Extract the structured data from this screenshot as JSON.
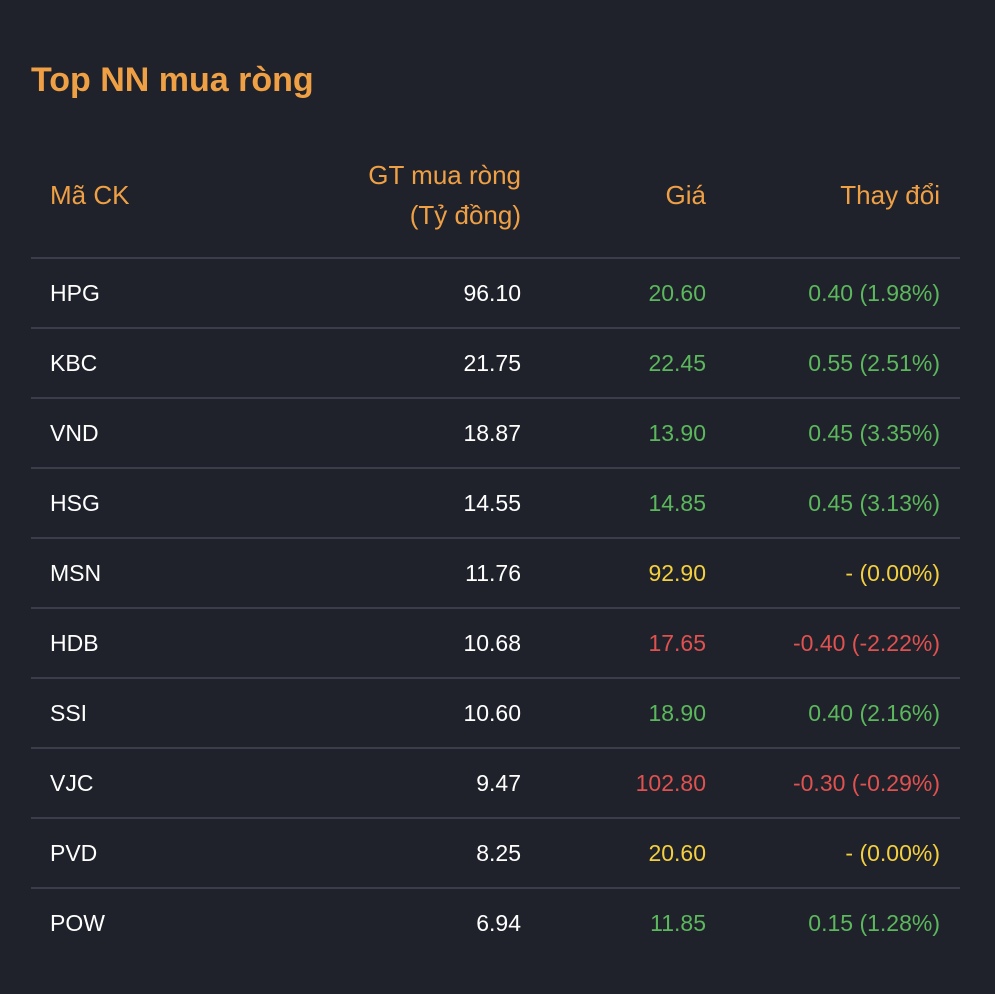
{
  "title": "Top NN mua ròng",
  "headers": {
    "symbol": "Mã CK",
    "net_value_line1": "GT mua ròng",
    "net_value_line2": "(Tỷ đồng)",
    "price": "Giá",
    "change": "Thay đổi"
  },
  "colors": {
    "accent": "#f0a044",
    "background": "#1f222b",
    "up": "#5cb85c",
    "flat": "#f4d03f",
    "down": "#e0514f"
  },
  "rows": [
    {
      "symbol": "HPG",
      "net_value": "96.10",
      "price": "20.60",
      "change": "0.40 (1.98%)",
      "trend": "up"
    },
    {
      "symbol": "KBC",
      "net_value": "21.75",
      "price": "22.45",
      "change": "0.55 (2.51%)",
      "trend": "up"
    },
    {
      "symbol": "VND",
      "net_value": "18.87",
      "price": "13.90",
      "change": "0.45 (3.35%)",
      "trend": "up"
    },
    {
      "symbol": "HSG",
      "net_value": "14.55",
      "price": "14.85",
      "change": "0.45 (3.13%)",
      "trend": "up"
    },
    {
      "symbol": "MSN",
      "net_value": "11.76",
      "price": "92.90",
      "change": "- (0.00%)",
      "trend": "flat"
    },
    {
      "symbol": "HDB",
      "net_value": "10.68",
      "price": "17.65",
      "change": "-0.40 (-2.22%)",
      "trend": "down"
    },
    {
      "symbol": "SSI",
      "net_value": "10.60",
      "price": "18.90",
      "change": "0.40 (2.16%)",
      "trend": "up"
    },
    {
      "symbol": "VJC",
      "net_value": "9.47",
      "price": "102.80",
      "change": "-0.30 (-0.29%)",
      "trend": "down"
    },
    {
      "symbol": "PVD",
      "net_value": "8.25",
      "price": "20.60",
      "change": "- (0.00%)",
      "trend": "flat"
    },
    {
      "symbol": "POW",
      "net_value": "6.94",
      "price": "11.85",
      "change": "0.15 (1.28%)",
      "trend": "up"
    }
  ]
}
